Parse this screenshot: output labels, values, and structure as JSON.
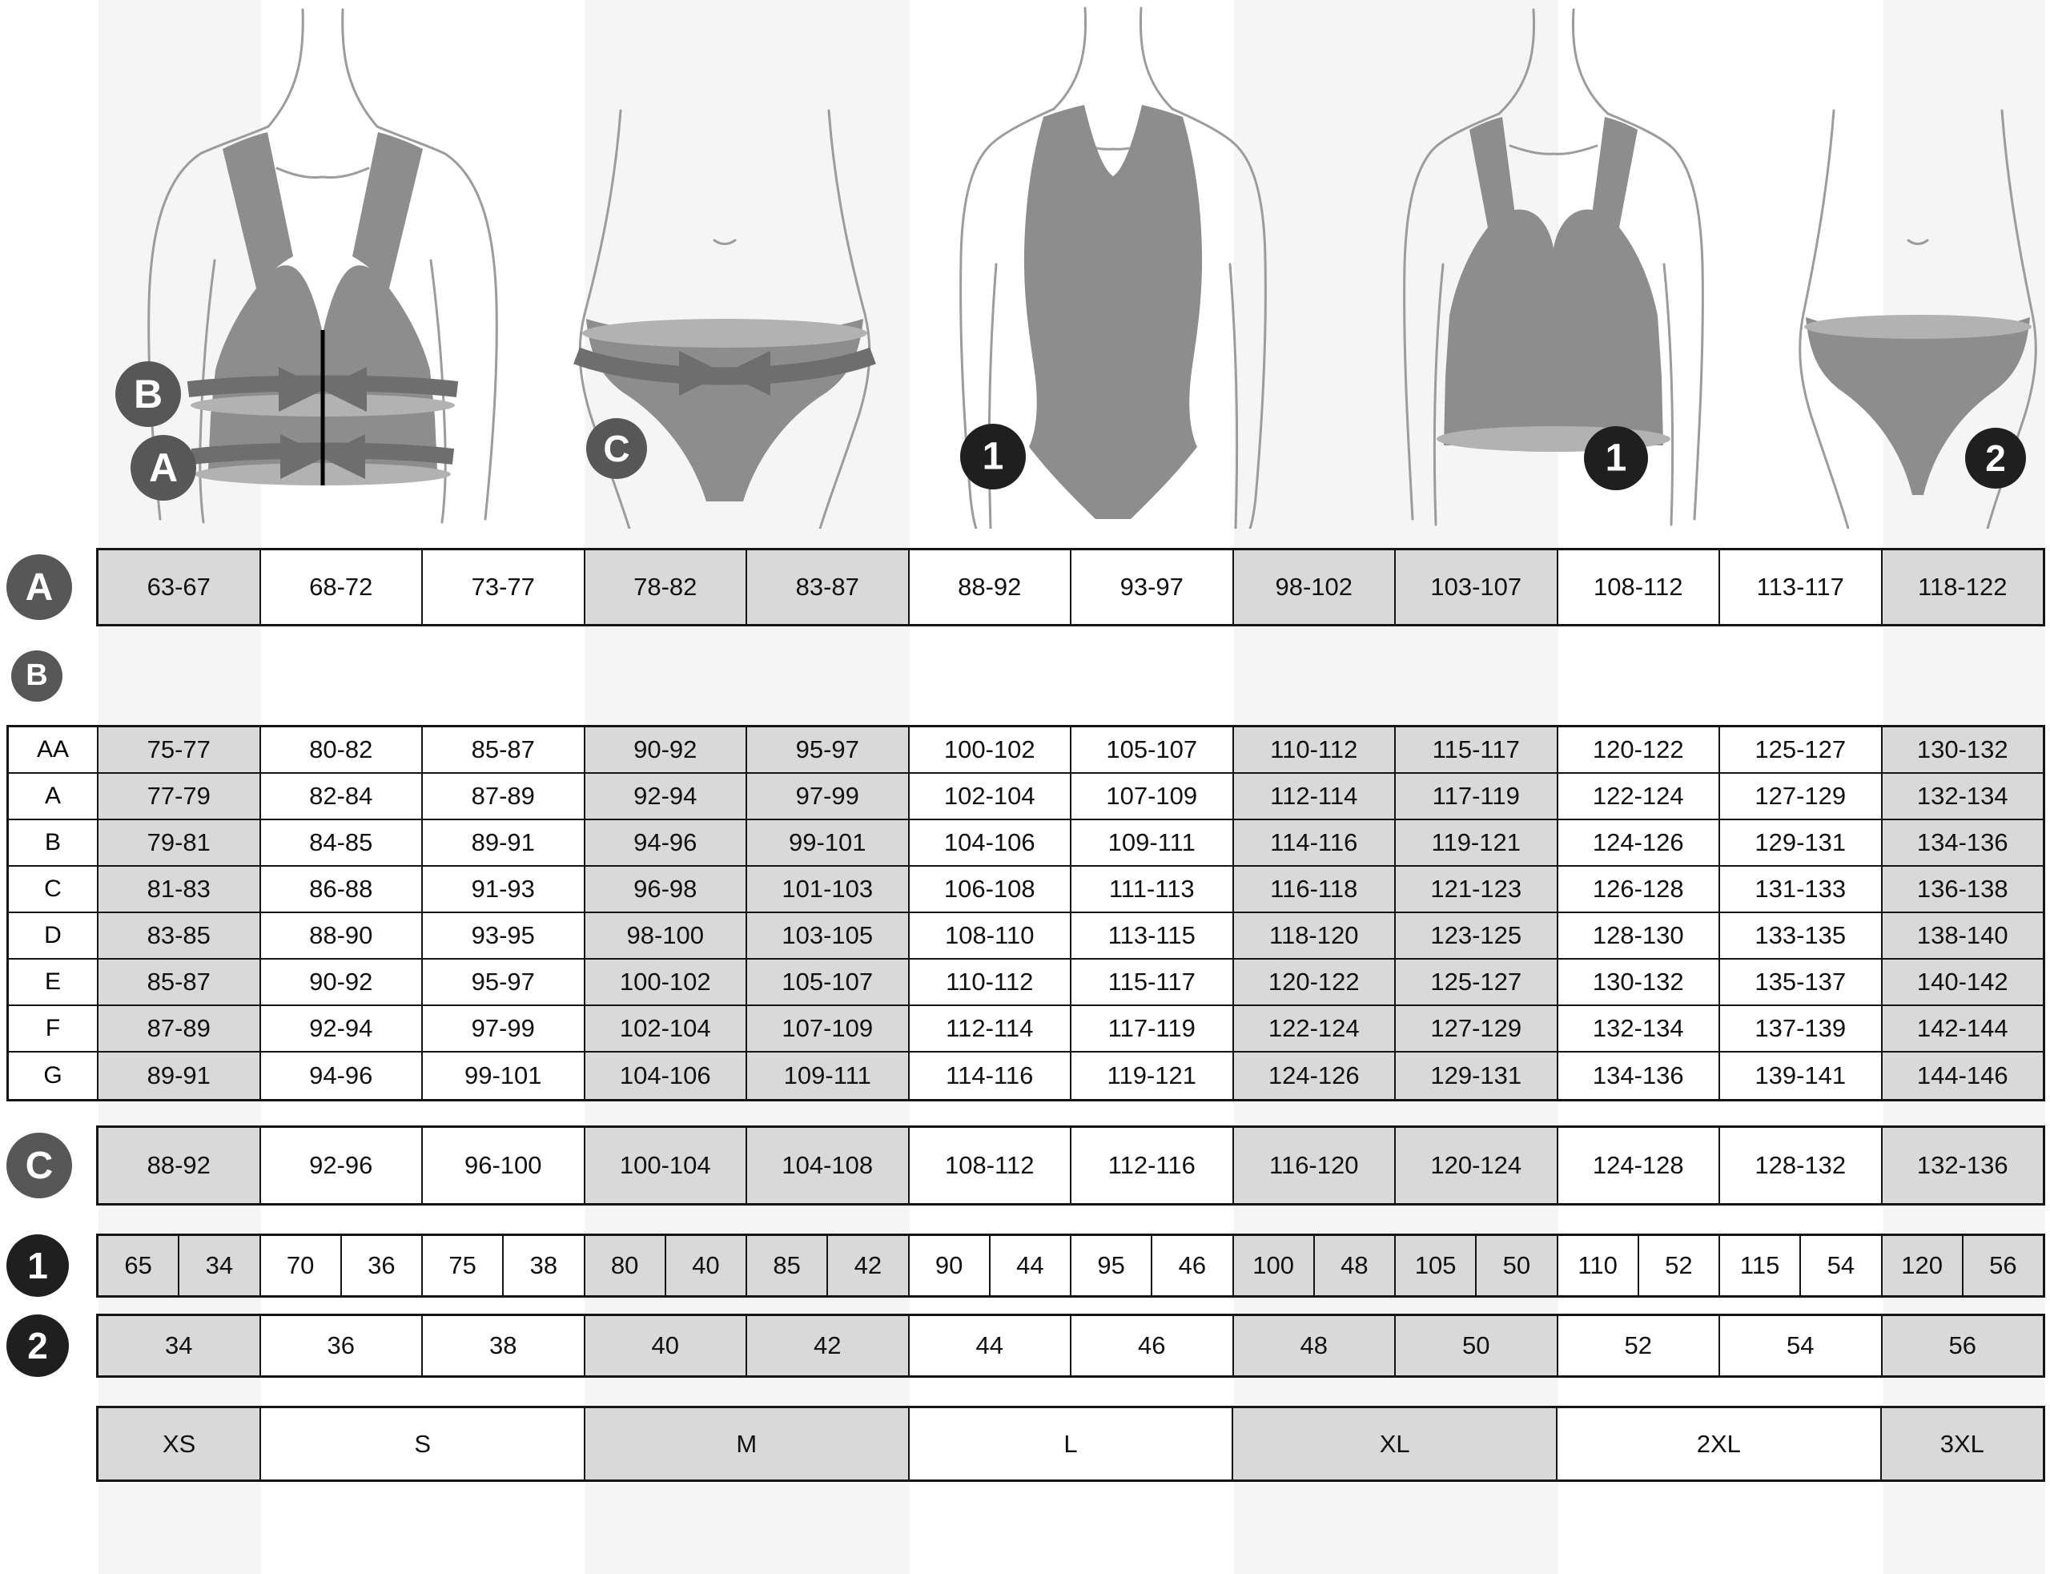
{
  "figures": {
    "bra_measure": {
      "bust_label": "B",
      "underbust_label": "A"
    },
    "panty_measure": {
      "hip_label": "C"
    },
    "swimsuit": {
      "number_label": "1"
    },
    "bra_plain": {
      "number_label": "1"
    },
    "panty_plain": {
      "number_label": "2"
    }
  },
  "row_a": {
    "label": "A",
    "cells": [
      "63-67",
      "68-72",
      "73-77",
      "78-82",
      "83-87",
      "88-92",
      "93-97",
      "98-102",
      "103-107",
      "108-112",
      "113-117",
      "118-122"
    ]
  },
  "section_b": {
    "label": "B",
    "rows": [
      {
        "label": "AA",
        "cells": [
          "75-77",
          "80-82",
          "85-87",
          "90-92",
          "95-97",
          "100-102",
          "105-107",
          "110-112",
          "115-117",
          "120-122",
          "125-127",
          "130-132"
        ]
      },
      {
        "label": "A",
        "cells": [
          "77-79",
          "82-84",
          "87-89",
          "92-94",
          "97-99",
          "102-104",
          "107-109",
          "112-114",
          "117-119",
          "122-124",
          "127-129",
          "132-134"
        ]
      },
      {
        "label": "B",
        "cells": [
          "79-81",
          "84-85",
          "89-91",
          "94-96",
          "99-101",
          "104-106",
          "109-111",
          "114-116",
          "119-121",
          "124-126",
          "129-131",
          "134-136"
        ]
      },
      {
        "label": "C",
        "cells": [
          "81-83",
          "86-88",
          "91-93",
          "96-98",
          "101-103",
          "106-108",
          "111-113",
          "116-118",
          "121-123",
          "126-128",
          "131-133",
          "136-138"
        ]
      },
      {
        "label": "D",
        "cells": [
          "83-85",
          "88-90",
          "93-95",
          "98-100",
          "103-105",
          "108-110",
          "113-115",
          "118-120",
          "123-125",
          "128-130",
          "133-135",
          "138-140"
        ]
      },
      {
        "label": "E",
        "cells": [
          "85-87",
          "90-92",
          "95-97",
          "100-102",
          "105-107",
          "110-112",
          "115-117",
          "120-122",
          "125-127",
          "130-132",
          "135-137",
          "140-142"
        ]
      },
      {
        "label": "F",
        "cells": [
          "87-89",
          "92-94",
          "97-99",
          "102-104",
          "107-109",
          "112-114",
          "117-119",
          "122-124",
          "127-129",
          "132-134",
          "137-139",
          "142-144"
        ]
      },
      {
        "label": "G",
        "cells": [
          "89-91",
          "94-96",
          "99-101",
          "104-106",
          "109-111",
          "114-116",
          "119-121",
          "124-126",
          "129-131",
          "134-136",
          "139-141",
          "144-146"
        ]
      }
    ]
  },
  "row_c": {
    "label": "C",
    "cells": [
      "88-92",
      "92-96",
      "96-100",
      "100-104",
      "104-108",
      "108-112",
      "112-116",
      "116-120",
      "120-124",
      "124-128",
      "128-132",
      "132-136"
    ]
  },
  "row_1": {
    "label": "1",
    "cells": [
      "65",
      "34",
      "70",
      "36",
      "75",
      "38",
      "80",
      "40",
      "85",
      "42",
      "90",
      "44",
      "95",
      "46",
      "100",
      "48",
      "105",
      "50",
      "110",
      "52",
      "115",
      "54",
      "120",
      "56"
    ]
  },
  "row_2": {
    "label": "2",
    "cells": [
      "34",
      "36",
      "38",
      "40",
      "42",
      "44",
      "46",
      "48",
      "50",
      "52",
      "54",
      "56"
    ]
  },
  "sizes_row": {
    "cells": [
      "XS",
      "S",
      "M",
      "L",
      "XL",
      "2XL",
      "3XL"
    ]
  },
  "colors": {
    "cell_shaded": "#d9d9d9",
    "cell_plain": "#ffffff",
    "letter_circle": "#575757",
    "number_circle": "#1f1f1f",
    "garment": "#8d8d8d",
    "tape_dark": "#6e6e6e",
    "tape_light": "#b2b2b2",
    "border": "#151515",
    "background_stripe": "#f5f5f5"
  }
}
